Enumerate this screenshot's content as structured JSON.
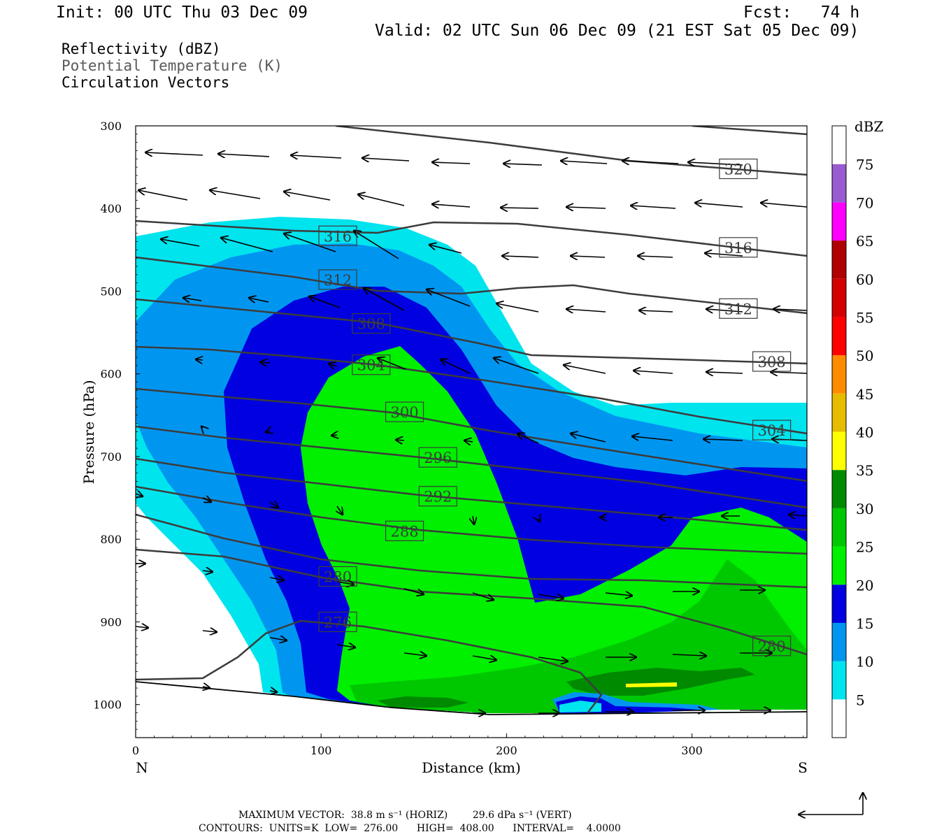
{
  "header": {
    "init": "Init: 00 UTC Thu 03 Dec 09",
    "fcst": "Fcst:   74 h",
    "valid": "Valid: 02 UTC Sun 06 Dec 09 (21 EST Sat 05 Dec 09)"
  },
  "legend": {
    "line1": "Reflectivity (dBZ)",
    "line2": "Potential Temperature (K)",
    "line3": "Circulation Vectors"
  },
  "footer": {
    "max_vector": "MAXIMUM VECTOR:  38.8 m s⁻¹ (HORIZ)        29.6 dPa s⁻¹ (VERT)",
    "contours": "CONTOURS:  UNITS=K  LOW=  276.00      HIGH=  408.00      INTERVAL=    4.0000"
  },
  "colorbar": {
    "unit_label": "dBZ",
    "levels": [
      5,
      10,
      15,
      20,
      25,
      30,
      35,
      40,
      45,
      50,
      55,
      60,
      65,
      70,
      75
    ],
    "colors": [
      "#ffffff",
      "#00e4ee",
      "#0096f0",
      "#0000e0",
      "#00f000",
      "#00c800",
      "#008a00",
      "#ffff00",
      "#e6bc00",
      "#ff8c00",
      "#ff0000",
      "#d40000",
      "#b00000",
      "#ff00ff",
      "#9a5ad2",
      "#ffffff"
    ]
  },
  "chart_data": {
    "type": "cross-section",
    "xlabel": "Distance (km)",
    "ylabel": "Pressure (hPa)",
    "x_ticks": [
      "0",
      "100",
      "200",
      "300"
    ],
    "x_end_labels": [
      "N",
      "S"
    ],
    "y_ticks": [
      "300",
      "400",
      "500",
      "600",
      "700",
      "800",
      "900",
      "1000"
    ],
    "xlim": [
      0,
      362
    ],
    "ylim": [
      1040,
      300
    ],
    "contour_field": "Potential Temperature (K)",
    "contour_labels": [
      {
        "value": "320",
        "x": 325,
        "p": 352
      },
      {
        "value": "316",
        "x": 109,
        "p": 433
      },
      {
        "value": "316",
        "x": 325,
        "p": 447
      },
      {
        "value": "312",
        "x": 109,
        "p": 486
      },
      {
        "value": "312",
        "x": 325,
        "p": 521
      },
      {
        "value": "308",
        "x": 127,
        "p": 539
      },
      {
        "value": "308",
        "x": 343,
        "p": 585
      },
      {
        "value": "304",
        "x": 127,
        "p": 589
      },
      {
        "value": "304",
        "x": 343,
        "p": 668
      },
      {
        "value": "300",
        "x": 145,
        "p": 646
      },
      {
        "value": "296",
        "x": 163,
        "p": 701
      },
      {
        "value": "292",
        "x": 163,
        "p": 748
      },
      {
        "value": "288",
        "x": 145,
        "p": 790
      },
      {
        "value": "280",
        "x": 109,
        "p": 845
      },
      {
        "value": "276",
        "x": 109,
        "p": 900
      },
      {
        "value": "280",
        "x": 343,
        "p": 929
      }
    ],
    "reflectivity_dbz_bands": [
      5,
      10,
      15,
      20,
      25,
      30,
      35
    ]
  }
}
